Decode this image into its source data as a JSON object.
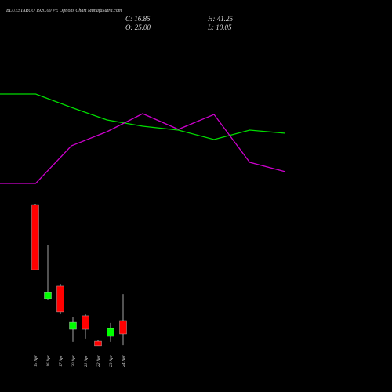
{
  "header": {
    "title": "BLUESTARCO 1920.00 PE Options Chart MunafaSutra.com",
    "close": "C: 16.85",
    "high": "H: 41.25",
    "open": "O: 25.00",
    "low": "L: 10.05"
  },
  "chart_data": [
    {
      "type": "line",
      "ylim": [
        0,
        150
      ],
      "series": [
        {
          "color": "#00dd00",
          "values": [
            130,
            130,
            113,
            97,
            89,
            84,
            72,
            84,
            80
          ]
        },
        {
          "color": "#cc00cc",
          "values": [
            16,
            16,
            64,
            82,
            105,
            85,
            104,
            43,
            31
          ]
        }
      ]
    },
    {
      "type": "candlestick",
      "ylim": [
        5,
        100
      ],
      "up_color": "#00ff00",
      "down_color": "#ff0000",
      "categories": [
        "15 Apr",
        "16 Apr",
        "17 Apr",
        "20 Apr",
        "21 Apr",
        "22 Apr",
        "23 Apr",
        "24 Apr"
      ],
      "open": [
        95.9,
        38.4,
        46.1,
        19.7,
        27.9,
        12.5,
        15.4,
        25.0
      ],
      "high": [
        96.4,
        71.5,
        47.5,
        27.4,
        29.3,
        13.0,
        23.6,
        41.25
      ],
      "low": [
        56.1,
        37.5,
        29.3,
        12.1,
        14.0,
        9.7,
        12.1,
        10.05
      ],
      "close": [
        56.1,
        42.2,
        30.3,
        24.0,
        19.7,
        9.7,
        20.2,
        16.85
      ]
    }
  ]
}
